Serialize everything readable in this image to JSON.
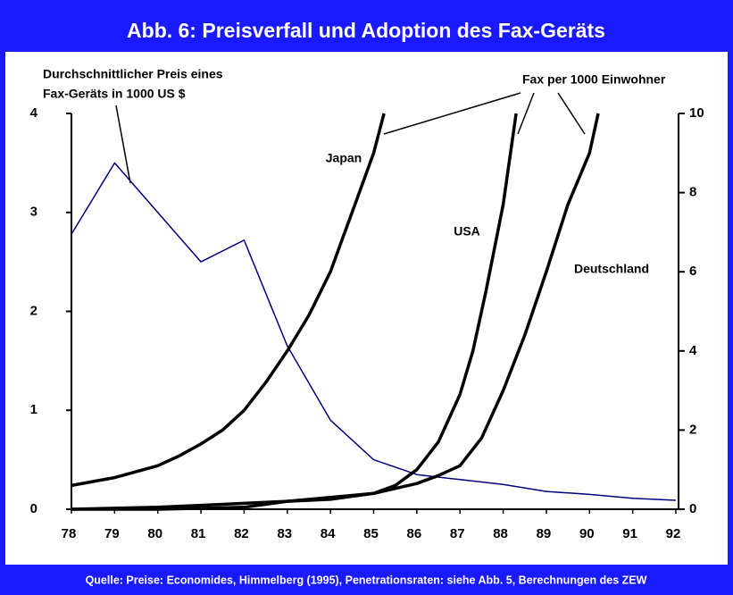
{
  "chart_data": {
    "type": "line",
    "title": "Abb. 6: Preisverfall und Adoption des Fax-Geräts",
    "footer": "Quelle: Preise: Economides, Himmelberg (1995), Penetrationsraten: siehe Abb. 5, Berechnungen des ZEW",
    "annotations": [
      "Durchschnittlicher Preis eines",
      "Fax-Geräts in 1000 US $",
      "Fax per 1000 Einwohner"
    ],
    "xlim": [
      78,
      92
    ],
    "xticks": [
      78,
      79,
      80,
      81,
      82,
      83,
      84,
      85,
      86,
      87,
      88,
      89,
      90,
      91,
      92
    ],
    "ylim": [
      0,
      4
    ],
    "yticks": [
      0,
      1,
      2,
      3,
      4
    ],
    "y2lim": [
      0,
      10
    ],
    "y2ticks": [
      0,
      2,
      4,
      6,
      8,
      10
    ],
    "series": [
      {
        "color": "#000080",
        "axis": "y",
        "x": [
          78,
          79,
          80,
          81,
          82,
          83,
          84,
          85,
          86,
          87,
          88,
          89,
          90,
          91,
          92
        ],
        "values": [
          2.78,
          3.5,
          3.0,
          2.5,
          2.72,
          1.65,
          0.9,
          0.5,
          0.35,
          0.3,
          0.25,
          0.18,
          0.15,
          0.11,
          0.09
        ]
      },
      {
        "name": "Japan",
        "color": "#000000",
        "axis": "y2",
        "x": [
          78,
          79,
          80,
          80.5,
          81,
          81.5,
          82,
          82.5,
          83,
          83.5,
          84,
          84.3,
          84.6,
          85,
          85.24
        ],
        "values": [
          0.6,
          0.8,
          1.1,
          1.35,
          1.65,
          2.0,
          2.5,
          3.2,
          4.0,
          4.9,
          6.0,
          6.9,
          7.8,
          9.0,
          10
        ]
      },
      {
        "name": "USA",
        "color": "#000000",
        "axis": "y2",
        "x": [
          78,
          80,
          82,
          83,
          84,
          85,
          85.5,
          86,
          86.5,
          87,
          87.3,
          87.6,
          88,
          88.3
        ],
        "values": [
          0,
          0,
          0.05,
          0.2,
          0.3,
          0.4,
          0.6,
          1.0,
          1.7,
          2.9,
          4.0,
          5.5,
          7.7,
          10
        ]
      },
      {
        "name": "Deutschland",
        "color": "#000000",
        "axis": "y2",
        "x": [
          78,
          80,
          81,
          82,
          83,
          84,
          85,
          86,
          86.5,
          87,
          87.5,
          88,
          88.5,
          89,
          89.5,
          90,
          90.2
        ],
        "values": [
          0,
          0.05,
          0.1,
          0.15,
          0.2,
          0.25,
          0.4,
          0.65,
          0.85,
          1.1,
          1.8,
          3.0,
          4.4,
          6.0,
          7.7,
          9.0,
          10
        ]
      }
    ]
  }
}
